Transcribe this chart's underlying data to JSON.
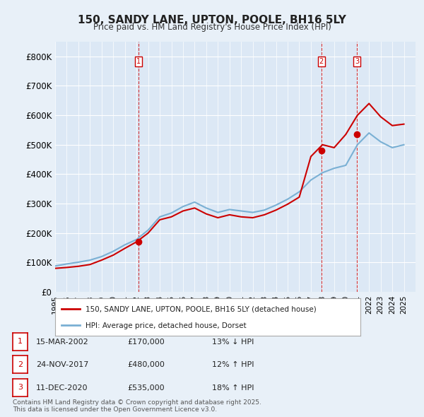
{
  "title": "150, SANDY LANE, UPTON, POOLE, BH16 5LY",
  "subtitle": "Price paid vs. HM Land Registry's House Price Index (HPI)",
  "background_color": "#e8f0f8",
  "plot_bg_color": "#dce8f5",
  "ylabel_color": "#333333",
  "ylim": [
    0,
    850000
  ],
  "yticks": [
    0,
    100000,
    200000,
    300000,
    400000,
    500000,
    600000,
    700000,
    800000
  ],
  "ytick_labels": [
    "£0",
    "£100K",
    "£200K",
    "£300K",
    "£400K",
    "£500K",
    "£600K",
    "£700K",
    "£800K"
  ],
  "xlim_start": 1995,
  "xlim_end": 2026,
  "hpi_color": "#7ab0d4",
  "price_color": "#cc0000",
  "transaction_color": "#cc0000",
  "dashed_line_color": "#cc0000",
  "transactions": [
    {
      "label": "1",
      "date": 2002.2,
      "price": 170000,
      "text": "15-MAR-2002",
      "amount": "£170,000",
      "hpi_rel": "13% ↓ HPI"
    },
    {
      "label": "2",
      "date": 2017.9,
      "price": 480000,
      "text": "24-NOV-2017",
      "amount": "£480,000",
      "hpi_rel": "12% ↑ HPI"
    },
    {
      "label": "3",
      "date": 2020.95,
      "price": 535000,
      "text": "11-DEC-2020",
      "amount": "£535,000",
      "hpi_rel": "18% ↑ HPI"
    }
  ],
  "hpi_years": [
    1995,
    1996,
    1997,
    1998,
    1999,
    2000,
    2001,
    2002,
    2003,
    2004,
    2005,
    2006,
    2007,
    2008,
    2009,
    2010,
    2011,
    2012,
    2013,
    2014,
    2015,
    2016,
    2017,
    2018,
    2019,
    2020,
    2021,
    2022,
    2023,
    2024,
    2025
  ],
  "hpi_values": [
    88000,
    95000,
    101000,
    108000,
    120000,
    138000,
    160000,
    178000,
    210000,
    255000,
    268000,
    290000,
    305000,
    285000,
    270000,
    280000,
    275000,
    270000,
    278000,
    295000,
    315000,
    340000,
    380000,
    405000,
    420000,
    430000,
    500000,
    540000,
    510000,
    490000,
    500000
  ],
  "price_years": [
    1995,
    1996,
    1997,
    1998,
    1999,
    2000,
    2001,
    2002,
    2003,
    2004,
    2005,
    2006,
    2007,
    2008,
    2009,
    2010,
    2011,
    2012,
    2013,
    2014,
    2015,
    2016,
    2017,
    2018,
    2019,
    2020,
    2021,
    2022,
    2023,
    2024,
    2025
  ],
  "price_values": [
    80000,
    83000,
    87000,
    93000,
    108000,
    125000,
    148000,
    170000,
    200000,
    245000,
    255000,
    275000,
    285000,
    265000,
    252000,
    262000,
    255000,
    252000,
    262000,
    278000,
    298000,
    322000,
    460000,
    500000,
    490000,
    535000,
    600000,
    640000,
    595000,
    565000,
    570000
  ],
  "footer_text": "Contains HM Land Registry data © Crown copyright and database right 2025.\nThis data is licensed under the Open Government Licence v3.0.",
  "legend_entries": [
    "150, SANDY LANE, UPTON, POOLE, BH16 5LY (detached house)",
    "HPI: Average price, detached house, Dorset"
  ]
}
